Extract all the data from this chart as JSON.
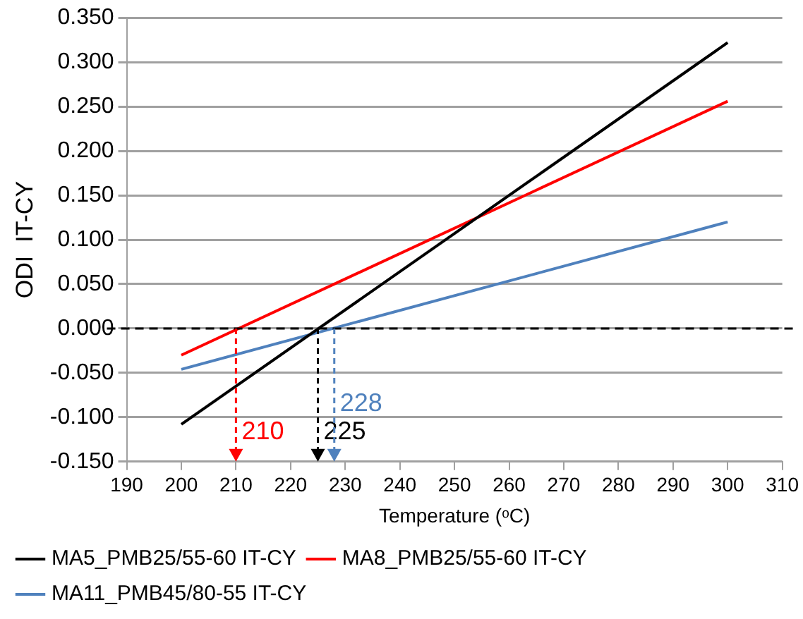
{
  "chart_data": {
    "type": "line",
    "xlabel": "Temperature (ᵒC)",
    "ylabel": "ODI  IT-CY",
    "x": [
      200,
      300
    ],
    "series": [
      {
        "name": "MA5_PMB25/55-60 IT-CY",
        "color": "#000000",
        "values": [
          -0.108,
          0.322
        ]
      },
      {
        "name": "MA8_PMB25/55-60 IT-CY",
        "color": "#ff0000",
        "values": [
          -0.03,
          0.256
        ]
      },
      {
        "name": "MA11_PMB45/80-55 IT-CY",
        "color": "#4f81bd",
        "values": [
          -0.046,
          0.12
        ]
      }
    ],
    "xlim": [
      190,
      310
    ],
    "xticks": [
      190,
      200,
      210,
      220,
      230,
      240,
      250,
      260,
      270,
      280,
      290,
      300,
      310
    ],
    "ylim": [
      -0.15,
      0.35
    ],
    "yticks": [
      {
        "value": -0.15,
        "label": "-0.150"
      },
      {
        "value": -0.1,
        "label": "-0.100"
      },
      {
        "value": -0.05,
        "label": "-0.050"
      },
      {
        "value": 0,
        "label": "0.000"
      },
      {
        "value": 0.05,
        "label": "0.050"
      },
      {
        "value": 0.1,
        "label": "0.100"
      },
      {
        "value": 0.15,
        "label": "0.150"
      },
      {
        "value": 0.2,
        "label": "0.200"
      },
      {
        "value": 0.25,
        "label": "0.250"
      },
      {
        "value": 0.3,
        "label": "0.300"
      },
      {
        "value": 0.35,
        "label": "0.350"
      }
    ],
    "ref_lines": [
      {
        "axis": "y",
        "value": 0,
        "color": "#000000",
        "line_style": "dashed"
      }
    ],
    "annotations": [
      {
        "text": "210",
        "x": 210,
        "y": 0
      },
      {
        "text": "225",
        "x": 225,
        "y": 0
      },
      {
        "text": "228",
        "x": 228,
        "y": 0
      }
    ],
    "grid": "y",
    "legend": "bottom",
    "marker": "none",
    "line_style": "solid"
  }
}
